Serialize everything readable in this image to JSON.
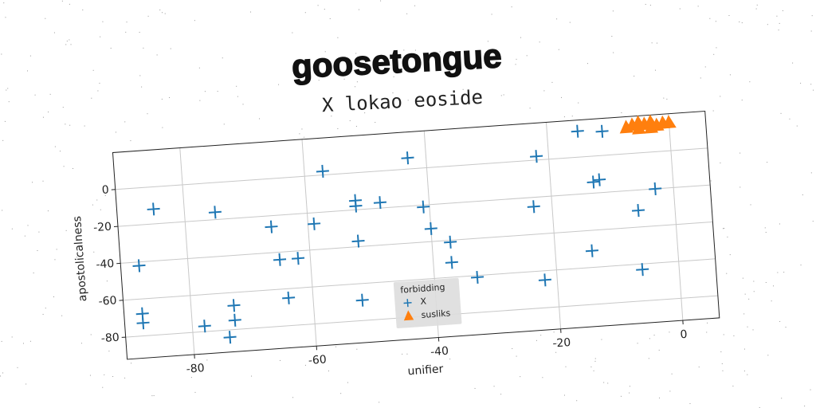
{
  "chart_data": {
    "type": "scatter",
    "title": "goosetongue",
    "subtitle": "X lokao eoside",
    "xlabel": "unifier",
    "ylabel": "apostolicalness",
    "xlim": [
      -91,
      6
    ],
    "ylim": [
      -92,
      20
    ],
    "xticks": [
      -80,
      -60,
      -40,
      -20,
      0
    ],
    "yticks": [
      -80,
      -60,
      -40,
      -20,
      0
    ],
    "grid": true,
    "legend_title": "forbidding",
    "legend_position": "lower center",
    "series": [
      {
        "name": "X",
        "color": "#1f77b4",
        "marker": "plus",
        "x": [
          -85,
          -75,
          -88,
          -88,
          -88,
          -78,
          -74,
          -73,
          -73,
          -66,
          -65,
          -62,
          -64,
          -59,
          -57,
          -52,
          -52,
          -52,
          -52,
          -48,
          -43,
          -41,
          -40,
          -37,
          -37,
          -33,
          -23,
          -22,
          -22,
          -15,
          -11,
          -13,
          -12,
          -14,
          -6,
          -6,
          -3
        ],
        "values": [
          -12,
          -16,
          -42,
          -68,
          -73,
          -77,
          -84,
          -67,
          -75,
          -26,
          -44,
          -44,
          -65,
          -26,
          2,
          -15,
          -18,
          -37,
          -69,
          -17,
          6,
          -21,
          -33,
          -41,
          -52,
          -61,
          -25,
          2,
          -65,
          14,
          13,
          -14,
          -13,
          -51,
          -31,
          -63,
          -20
        ]
      },
      {
        "name": "susliks",
        "color": "#ff7f0e",
        "marker": "triangle",
        "x": [
          -7,
          -6,
          -5,
          -4,
          -3,
          -2,
          -1,
          0,
          -5,
          -3
        ],
        "values": [
          14,
          15,
          16,
          15,
          16,
          14,
          15,
          15,
          13,
          13
        ]
      }
    ]
  }
}
